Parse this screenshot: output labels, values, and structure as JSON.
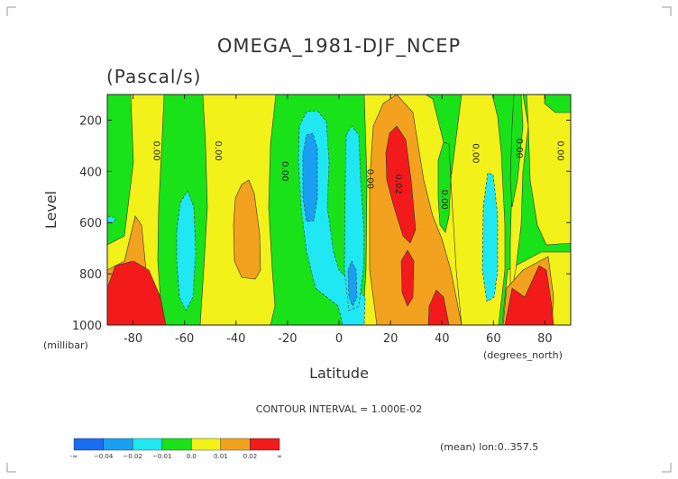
{
  "chart_data": {
    "type": "heatmap",
    "title": "OMEGA_1981-DJF_NCEP",
    "subtitle": "(Pascal/s)",
    "xlabel": "Latitude",
    "ylabel": "Level",
    "x_unit_label": "(degrees_north)",
    "y_unit_label": "(millibar)",
    "xlim": [
      -90,
      90
    ],
    "ylim": [
      1000,
      100
    ],
    "x_ticks": [
      -80,
      -60,
      -40,
      -20,
      0,
      20,
      40,
      60,
      80
    ],
    "x_tick_labels": [
      "-80",
      "-60",
      "-40",
      "-20",
      "0",
      "20",
      "40",
      "60",
      "80"
    ],
    "y_ticks": [
      200,
      400,
      600,
      800,
      1000
    ],
    "y_tick_labels": [
      "200",
      "400",
      "600",
      "800",
      "1000"
    ],
    "contour_interval_text": "CONTOUR INTERVAL = 1.000E-02",
    "footnote": "(mean) lon:0..357.5",
    "contour_labels": [
      {
        "text": "0.00",
        "lat": -72,
        "level": 320
      },
      {
        "text": "0.00",
        "lat": -48,
        "level": 320
      },
      {
        "text": "0.00",
        "lat": -22,
        "level": 400
      },
      {
        "text": "0.00",
        "lat": 11,
        "level": 430
      },
      {
        "text": "0.02",
        "lat": 22,
        "level": 450
      },
      {
        "text": "0.00",
        "lat": 40,
        "level": 510
      },
      {
        "text": "0.00",
        "lat": 52,
        "level": 330
      },
      {
        "text": "0.00",
        "lat": 69,
        "level": 310
      },
      {
        "text": "0.00",
        "lat": 85,
        "level": 320
      }
    ],
    "colorbar": {
      "colors": [
        "#1a6cf2",
        "#199ff2",
        "#1fe8f2",
        "#19e219",
        "#f2f21a",
        "#f2a21f",
        "#f21a1a"
      ],
      "labels": [
        "-∞",
        "−0.04",
        "−0.02",
        "−0.01",
        "0.0",
        "0.01",
        "0.02",
        "∞"
      ]
    },
    "bands": [
      {
        "name": "pos3",
        "color": "#f21a1a",
        "cells": [
          [
            -88,
            -72,
            780,
            1000
          ],
          [
            -80,
            -73,
            720,
            780
          ],
          [
            19,
            28,
            200,
            680
          ],
          [
            22,
            28,
            700,
            900
          ],
          [
            35,
            43,
            900,
            1000
          ],
          [
            64,
            78,
            820,
            1000
          ],
          [
            75,
            82,
            760,
            820
          ]
        ]
      },
      {
        "name": "neg3",
        "color": "#1a6cf2",
        "cells": [
          [
            -15,
            -9,
            280,
            520
          ],
          [
            2,
            7,
            820,
            920
          ]
        ]
      }
    ]
  }
}
